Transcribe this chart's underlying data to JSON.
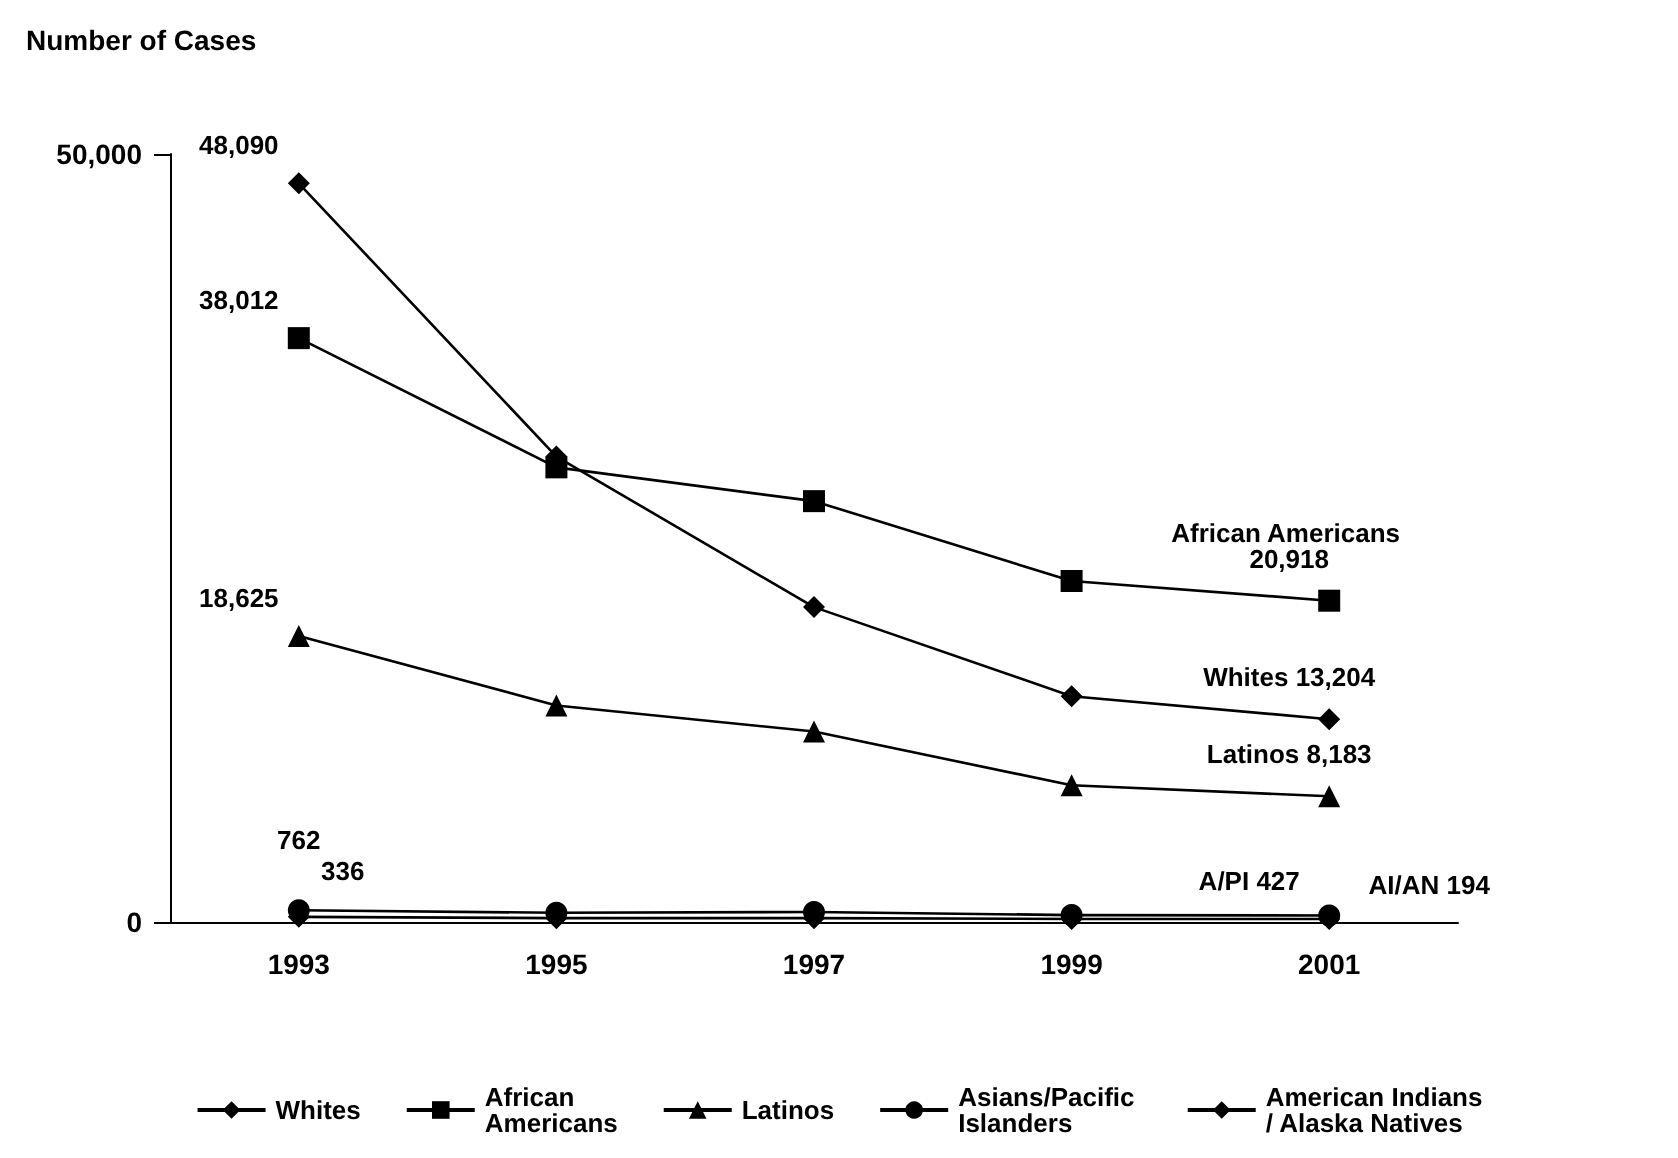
{
  "chart_data": {
    "type": "line",
    "ylabel": "Number of Cases",
    "categories": [
      "1993",
      "1995",
      "1997",
      "1999",
      "2001"
    ],
    "ylim": [
      0,
      50000
    ],
    "yticks": [
      0,
      {
        "value": 50000,
        "label": "50,000"
      }
    ],
    "grid": false,
    "legend": "bottom",
    "series": [
      {
        "name": "Whites",
        "color": "#000000",
        "marker": "diamond",
        "values": [
          48090,
          30300,
          20500,
          14700,
          13204
        ],
        "value_labels": [
          "48,090",
          null,
          null,
          null,
          "Whites 13,204"
        ]
      },
      {
        "name": "African Americans",
        "color": "#000000",
        "marker": "square",
        "values": [
          38012,
          29600,
          27400,
          22200,
          20918
        ],
        "value_labels": [
          "38,012",
          null,
          null,
          null,
          "African Americans 20,918"
        ]
      },
      {
        "name": "Latinos",
        "color": "#000000",
        "marker": "triangle",
        "values": [
          18625,
          14100,
          12400,
          8900,
          8183
        ],
        "value_labels": [
          "18,625",
          null,
          null,
          null,
          "Latinos 8,183"
        ]
      },
      {
        "name": "Asians/Pacific Islanders",
        "color": "#000000",
        "marker": "circle",
        "values": [
          762,
          600,
          650,
          450,
          427
        ],
        "value_labels": [
          "762",
          null,
          null,
          null,
          "A/PI 427"
        ]
      },
      {
        "name": "American Indians/ Alaska Natives",
        "color": "#000000",
        "marker": "diamond",
        "values": [
          336,
          250,
          250,
          200,
          194
        ],
        "value_labels": [
          "336",
          null,
          null,
          null,
          "AI/AN 194"
        ]
      }
    ]
  }
}
